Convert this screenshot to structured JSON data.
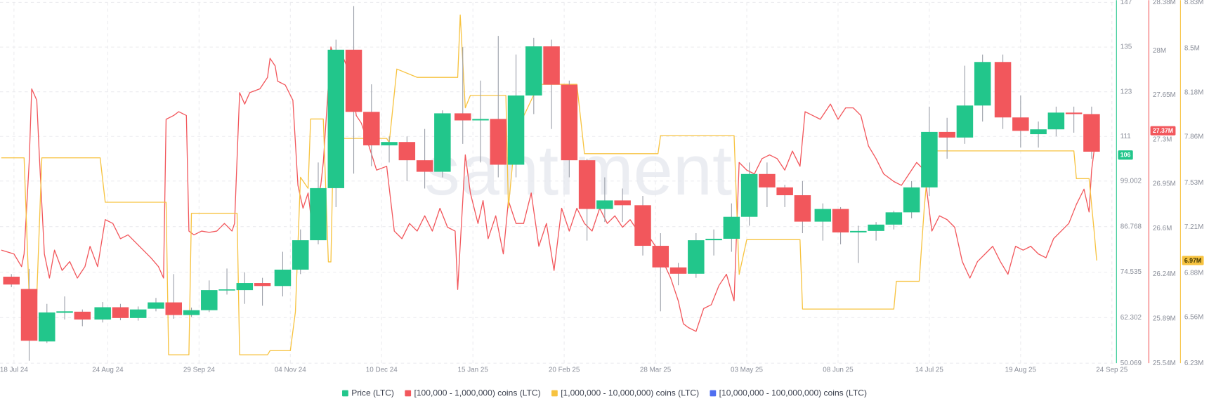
{
  "chart_data": {
    "type": "candlestick",
    "watermark": "santiment",
    "grid": true,
    "xlim": [
      -5.5,
      434.5
    ],
    "xticks": [
      {
        "value": 0,
        "label": "18 Jul 24"
      },
      {
        "value": 37,
        "label": "24 Aug 24"
      },
      {
        "value": 73,
        "label": "29 Sep 24"
      },
      {
        "value": 109,
        "label": "04 Nov 24"
      },
      {
        "value": 145,
        "label": "10 Dec 24"
      },
      {
        "value": 181,
        "label": "15 Jan 25"
      },
      {
        "value": 217,
        "label": "20 Feb 25"
      },
      {
        "value": 253,
        "label": "28 Mar 25"
      },
      {
        "value": 289,
        "label": "03 May 25"
      },
      {
        "value": 325,
        "label": "08 Jun 25"
      },
      {
        "value": 361,
        "label": "14 Jul 25"
      },
      {
        "value": 397,
        "label": "19 Aug 25"
      },
      {
        "value": 433,
        "label": "24 Sep 25"
      }
    ],
    "ylim": [
      50.069,
      147
    ],
    "yticks": [
      50.069,
      62.302,
      74.535,
      86.768,
      99.002,
      111,
      123,
      135,
      147
    ],
    "y2lim": [
      25540000,
      28380000
    ],
    "y2ticks": [
      {
        "value": 25540000,
        "label": "25.54M"
      },
      {
        "value": 25890000,
        "label": "25.89M"
      },
      {
        "value": 26240000,
        "label": "26.24M"
      },
      {
        "value": 26600000,
        "label": "26.6M"
      },
      {
        "value": 26950000,
        "label": "26.95M"
      },
      {
        "value": 27300000,
        "label": "27.3M"
      },
      {
        "value": 27650000,
        "label": "27.65M"
      },
      {
        "value": 28000000,
        "label": "28M"
      },
      {
        "value": 28380000,
        "label": "28.38M"
      }
    ],
    "y3lim": [
      6230000,
      8830000
    ],
    "y3ticks": [
      {
        "value": 6230000,
        "label": "6.23M"
      },
      {
        "value": 6560000,
        "label": "6.56M"
      },
      {
        "value": 6880000,
        "label": "6.88M"
      },
      {
        "value": 7210000,
        "label": "7.21M"
      },
      {
        "value": 7530000,
        "label": "7.53M"
      },
      {
        "value": 7860000,
        "label": "7.86M"
      },
      {
        "value": 8180000,
        "label": "8.18M"
      },
      {
        "value": 8500000,
        "label": "8.5M"
      },
      {
        "value": 8830000,
        "label": "8.83M"
      }
    ],
    "series": [
      {
        "name": "Price (LTC)",
        "type": "candlestick",
        "axis": "y",
        "color": "#22c68b",
        "up_color": "#22c68b",
        "down_color": "#f2575c",
        "current": {
          "value": 106,
          "label": "106"
        },
        "x": [
          -1,
          6,
          13,
          20,
          27,
          35,
          42,
          49,
          56,
          63,
          70,
          77,
          84,
          91,
          98,
          106,
          113,
          120,
          127,
          134,
          141,
          148,
          155,
          162,
          169,
          177,
          184,
          191,
          198,
          205,
          212,
          219,
          226,
          233,
          240,
          248,
          255,
          262,
          269,
          276,
          283,
          290,
          297,
          304,
          311,
          319,
          326,
          333,
          340,
          347,
          354,
          361,
          368,
          375,
          382,
          390,
          397,
          404,
          411,
          418,
          425
        ],
        "open": [
          73.3,
          70.0,
          55.9,
          63.6,
          63.9,
          61.8,
          65.1,
          62.2,
          64.7,
          66.4,
          63.0,
          64.3,
          69.7,
          69.7,
          71.6,
          70.8,
          75.2,
          83.1,
          97.1,
          134.3,
          117.6,
          108.6,
          109.5,
          104.6,
          101.5,
          117.2,
          115.3,
          115.7,
          103.4,
          122.0,
          135.2,
          124.9,
          104.6,
          91.5,
          93.8,
          92.5,
          81.6,
          75.8,
          74.1,
          83.1,
          83.5,
          89.4,
          100.9,
          97.3,
          95.2,
          88.1,
          91.5,
          85.2,
          85.6,
          87.3,
          90.6,
          97.3,
          112.2,
          110.7,
          119.3,
          131.0,
          116.1,
          111.6,
          112.9,
          117.4,
          117.0
        ],
        "high": [
          74,
          75.4,
          66,
          68,
          64.5,
          66.5,
          66,
          65.3,
          67.6,
          74,
          65,
          72.3,
          75.5,
          74.5,
          73,
          80,
          86,
          104,
          137,
          146,
          125,
          111,
          111,
          113,
          118,
          135,
          126,
          138,
          133,
          137.5,
          137,
          126,
          105,
          100,
          97,
          95,
          85,
          77,
          85,
          86,
          93,
          104,
          104,
          98,
          99,
          93,
          92,
          87,
          88,
          91,
          99,
          119,
          116,
          130,
          133,
          133,
          122,
          115,
          119,
          119,
          119
        ],
        "low": [
          70.5,
          50.7,
          55.5,
          61.8,
          60,
          61,
          61.6,
          61.5,
          64,
          62,
          62.5,
          63.8,
          68.5,
          66,
          65.5,
          68,
          74,
          82,
          92,
          101,
          103,
          104,
          99,
          97,
          100,
          109,
          104,
          100,
          100,
          117,
          113,
          100,
          83,
          88,
          88,
          79,
          64,
          71,
          73,
          79,
          80,
          87,
          92,
          92,
          85,
          83,
          82,
          77,
          83,
          86,
          89,
          95,
          105,
          109,
          115,
          113,
          108,
          108,
          111,
          112,
          105
        ],
        "close": [
          71.2,
          56.1,
          63.7,
          64.0,
          61.8,
          65.1,
          62.2,
          64.5,
          66.4,
          63.0,
          64.3,
          69.7,
          69.9,
          71.6,
          70.8,
          75.2,
          83.1,
          97.1,
          134.3,
          117.6,
          108.6,
          109.5,
          104.6,
          101.5,
          117.2,
          115.3,
          115.7,
          103.4,
          122.0,
          135.2,
          124.9,
          104.6,
          91.5,
          93.8,
          92.5,
          81.6,
          75.8,
          74.1,
          83.1,
          83.5,
          89.4,
          100.9,
          97.3,
          95.2,
          88.1,
          91.5,
          85.2,
          85.6,
          87.3,
          90.6,
          97.3,
          112.2,
          110.7,
          119.3,
          131.0,
          116.1,
          112.5,
          112.9,
          117.4,
          117.0,
          106.9
        ]
      },
      {
        "name": "[100,000 - 1,000,000) coins (LTC)",
        "type": "line",
        "axis": "y2",
        "color": "#f2575c",
        "current": {
          "value": 27370000,
          "label": "27.37M"
        },
        "x": [
          -5,
          0,
          3,
          4,
          6,
          7,
          9,
          10,
          12,
          14,
          16,
          19,
          22,
          25,
          28,
          30,
          33,
          36,
          39,
          42,
          45,
          48,
          51,
          54,
          57,
          59,
          60,
          63,
          65,
          68,
          69,
          71,
          74,
          77,
          80,
          83,
          86,
          87,
          89,
          91,
          93,
          97,
          100,
          101,
          103,
          104,
          107,
          110,
          112,
          114,
          116,
          118,
          119,
          121,
          122,
          125,
          127,
          130,
          133,
          135,
          137,
          140,
          143,
          147,
          150,
          153,
          156,
          159,
          162,
          165,
          168,
          171,
          174,
          175,
          177,
          178,
          180,
          183,
          185,
          187,
          190,
          193,
          195,
          198,
          201,
          204,
          207,
          210,
          213,
          216,
          219,
          222,
          225,
          228,
          231,
          234,
          237,
          240,
          243,
          246,
          249,
          253,
          256,
          259,
          262,
          264,
          266,
          269,
          272,
          275,
          278,
          281,
          284,
          286,
          289,
          292,
          295,
          298,
          301,
          304,
          307,
          310,
          312,
          315,
          318,
          321,
          322,
          325,
          328,
          331,
          334,
          337,
          340,
          343,
          347,
          350,
          353,
          356,
          359,
          362,
          365,
          368,
          371,
          374,
          377,
          380,
          383,
          386,
          389,
          392,
          395,
          398,
          401,
          404,
          407,
          410,
          413,
          416,
          419,
          422,
          424,
          425,
          427
        ],
        "values": [
          26430000,
          26400000,
          26300000,
          26400000,
          27120000,
          27700000,
          27610000,
          27180000,
          26400000,
          26210000,
          26430000,
          26270000,
          26340000,
          26210000,
          26300000,
          26460000,
          26300000,
          26670000,
          26640000,
          26520000,
          26550000,
          26490000,
          26430000,
          26370000,
          26300000,
          26210000,
          27460000,
          27490000,
          27520000,
          27490000,
          26580000,
          26550000,
          26580000,
          26570000,
          26580000,
          26640000,
          26580000,
          26640000,
          27670000,
          27580000,
          27670000,
          27700000,
          27790000,
          27940000,
          27880000,
          27760000,
          27730000,
          27610000,
          26940000,
          26760000,
          26880000,
          26550000,
          26790000,
          26940000,
          27120000,
          28030000,
          27910000,
          27940000,
          27790000,
          27490000,
          27430000,
          27250000,
          27060000,
          27090000,
          26580000,
          26520000,
          26640000,
          26580000,
          26700000,
          26580000,
          26760000,
          26610000,
          26580000,
          26120000,
          26820000,
          27180000,
          26880000,
          26640000,
          26820000,
          26520000,
          26700000,
          26400000,
          26820000,
          26640000,
          26640000,
          26880000,
          26460000,
          26640000,
          26270000,
          26760000,
          26580000,
          26760000,
          26640000,
          26580000,
          26760000,
          26640000,
          26700000,
          26610000,
          26670000,
          26580000,
          26580000,
          26460000,
          26340000,
          26210000,
          26030000,
          25850000,
          25820000,
          25790000,
          25970000,
          26000000,
          26150000,
          26240000,
          26030000,
          27120000,
          27060000,
          27030000,
          27150000,
          27180000,
          27150000,
          27060000,
          27210000,
          27090000,
          27520000,
          27490000,
          27460000,
          27550000,
          27580000,
          27460000,
          27550000,
          27550000,
          27490000,
          27250000,
          27150000,
          27030000,
          26970000,
          26940000,
          27030000,
          27120000,
          27060000,
          26580000,
          26700000,
          26670000,
          26610000,
          26340000,
          26210000,
          26340000,
          26400000,
          26460000,
          26340000,
          26240000,
          26460000,
          26430000,
          26460000,
          26400000,
          26370000,
          26520000,
          26580000,
          26640000,
          26790000,
          26910000,
          26730000,
          27060000,
          27370000
        ]
      },
      {
        "name": "[1,000,000 - 10,000,000) coins (LTC)",
        "type": "line",
        "axis": "y3",
        "color": "#f7c340",
        "current": {
          "value": 6970000,
          "label": "6.97M"
        },
        "x": [
          -5,
          4,
          6,
          9,
          11,
          34,
          36,
          60,
          61,
          69,
          70,
          88,
          89,
          100,
          101,
          109,
          111,
          113,
          116,
          117,
          122,
          124,
          125,
          126,
          147,
          148,
          151,
          159,
          175,
          176,
          178,
          180,
          194,
          195,
          197,
          201,
          207,
          222,
          225,
          254,
          255,
          284,
          286,
          289,
          310,
          311,
          347,
          348,
          357,
          359,
          361,
          418,
          419,
          424,
          426,
          427
        ],
        "values": [
          7710000,
          7710000,
          6710000,
          6710000,
          7710000,
          7710000,
          7390000,
          7390000,
          6290000,
          6290000,
          7310000,
          7310000,
          6290000,
          6290000,
          6320000,
          6320000,
          6600000,
          7570000,
          7490000,
          7990000,
          7990000,
          6960000,
          6960000,
          7850000,
          7850000,
          7820000,
          8350000,
          8290000,
          8290000,
          8740000,
          8070000,
          8160000,
          8160000,
          7350000,
          7740000,
          8010000,
          8240000,
          8240000,
          7740000,
          7740000,
          7870000,
          7870000,
          6870000,
          7120000,
          7120000,
          6620000,
          6620000,
          6820000,
          6820000,
          7350000,
          7760000,
          7760000,
          7560000,
          7560000,
          7180000,
          6970000
        ]
      },
      {
        "name": "[10,000,000 - 100,000,000) coins (LTC)",
        "type": "line",
        "axis": "y3",
        "color": "#4f6ef0"
      }
    ]
  }
}
